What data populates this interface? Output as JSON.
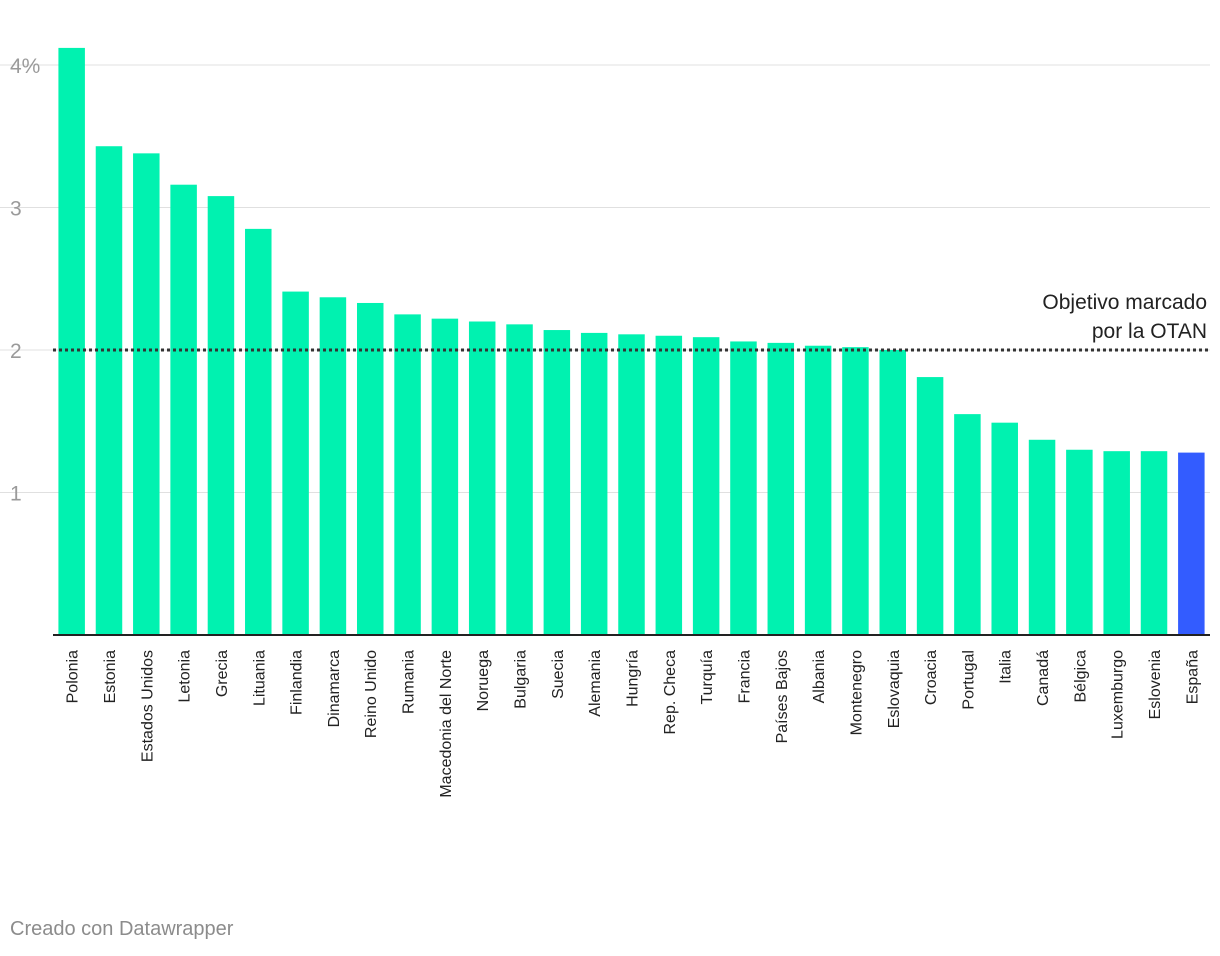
{
  "chart_data": {
    "type": "bar",
    "title": "",
    "xlabel": "",
    "ylabel": "",
    "ylim": [
      0,
      4.2
    ],
    "y_ticks": [
      {
        "value": 4,
        "label": "4%"
      },
      {
        "value": 3,
        "label": "3"
      },
      {
        "value": 2,
        "label": "2"
      },
      {
        "value": 1,
        "label": "1"
      }
    ],
    "grid": true,
    "legend": "none",
    "categories": [
      "Polonia",
      "Estonia",
      "Estados Unidos",
      "Letonia",
      "Grecia",
      "Lituania",
      "Finlandia",
      "Dinamarca",
      "Reino Unido",
      "Rumania",
      "Macedonia del Norte",
      "Noruega",
      "Bulgaria",
      "Suecia",
      "Alemania",
      "Hungría",
      "Rep. Checa",
      "Turquía",
      "Francia",
      "Países Bajos",
      "Albania",
      "Montenegro",
      "Eslovaquia",
      "Croacia",
      "Portugal",
      "Italia",
      "Canadá",
      "Bélgica",
      "Luxemburgo",
      "Eslovenia",
      "España"
    ],
    "values": [
      4.12,
      3.43,
      3.38,
      3.16,
      3.08,
      2.85,
      2.41,
      2.37,
      2.33,
      2.25,
      2.22,
      2.2,
      2.18,
      2.14,
      2.12,
      2.11,
      2.1,
      2.09,
      2.06,
      2.05,
      2.03,
      2.02,
      2.0,
      1.81,
      1.55,
      1.49,
      1.37,
      1.3,
      1.29,
      1.29,
      1.28
    ],
    "highlight": "España",
    "colors": {
      "bar": "#00f2b0",
      "highlight": "#335cff",
      "grid": "#e0e0e0",
      "axis": "#222222",
      "target_line": "#333333"
    },
    "annotations": [
      {
        "type": "reference-line",
        "value": 2,
        "lines": [
          "Objetivo marcado",
          "por la OTAN"
        ]
      }
    ]
  },
  "footer": {
    "credit": "Creado con Datawrapper"
  }
}
